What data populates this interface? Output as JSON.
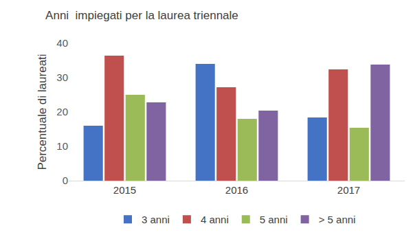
{
  "chart_data": {
    "type": "bar",
    "title": "Anni  impiegati per la laurea triennale",
    "y_label": "Percentuale di laureati",
    "categories": [
      "2015",
      "2016",
      "2017"
    ],
    "series": [
      {
        "name": "3 anni",
        "color": "#4472c4",
        "values": [
          16,
          34,
          18.4
        ]
      },
      {
        "name": "4 anni",
        "color": "#c0504d",
        "values": [
          36.4,
          27.2,
          32.4
        ]
      },
      {
        "name": "5 anni",
        "color": "#9bbb59",
        "values": [
          25,
          18,
          15.4
        ]
      },
      {
        "name": "> 5 anni",
        "color": "#8064a2",
        "values": [
          22.8,
          20.4,
          33.8
        ]
      }
    ],
    "ylim": [
      0,
      40
    ],
    "yticks": [
      0,
      10,
      20,
      30,
      40
    ],
    "grid": false,
    "legend": "bottom"
  }
}
